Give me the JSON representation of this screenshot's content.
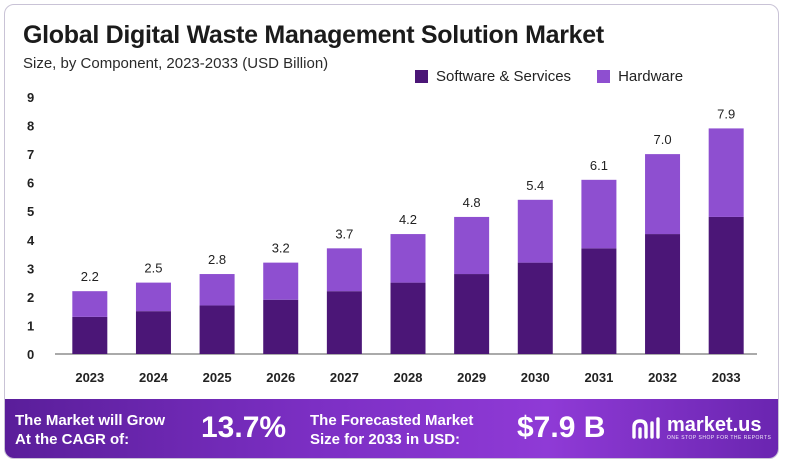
{
  "chart_data": {
    "type": "bar",
    "stacked": true,
    "title": "Global Digital Waste Management Solution Market",
    "subtitle": "Size, by Component, 2023-2033 (USD Billion)",
    "categories": [
      "2023",
      "2024",
      "2025",
      "2026",
      "2027",
      "2028",
      "2029",
      "2030",
      "2031",
      "2032",
      "2033"
    ],
    "series": [
      {
        "name": "Software & Services",
        "color": "#4b1677",
        "values": [
          1.3,
          1.5,
          1.7,
          1.9,
          2.2,
          2.5,
          2.8,
          3.2,
          3.7,
          4.2,
          4.8
        ]
      },
      {
        "name": "Hardware",
        "color": "#8e4fd0",
        "values": [
          0.9,
          1.0,
          1.1,
          1.3,
          1.5,
          1.7,
          2.0,
          2.2,
          2.4,
          2.8,
          3.1
        ]
      }
    ],
    "totals": [
      "2.2",
      "2.5",
      "2.8",
      "3.2",
      "3.7",
      "4.2",
      "4.8",
      "5.4",
      "6.1",
      "7.0",
      "7.9"
    ],
    "ylim": [
      0,
      9
    ],
    "yticks": [
      "0",
      "1",
      "2",
      "3",
      "4",
      "5",
      "6",
      "7",
      "8",
      "9"
    ],
    "legend_position": "top-right"
  },
  "legend": {
    "software_label": "Software & Services",
    "hardware_label": "Hardware",
    "software_color": "#4b1677",
    "hardware_color": "#8e4fd0"
  },
  "footer": {
    "cagr_label_line1": "The Market will Grow",
    "cagr_label_line2": "At the CAGR of:",
    "cagr_value": "13.7%",
    "forecast_label_line1": "The Forecasted Market",
    "forecast_label_line2": "Size for 2033 in USD:",
    "forecast_value": "$7.9 B",
    "brand_name": "market.us",
    "brand_tagline": "ONE STOP SHOP FOR THE REPORTS",
    "brand_icon": "market-us-logo-icon"
  }
}
